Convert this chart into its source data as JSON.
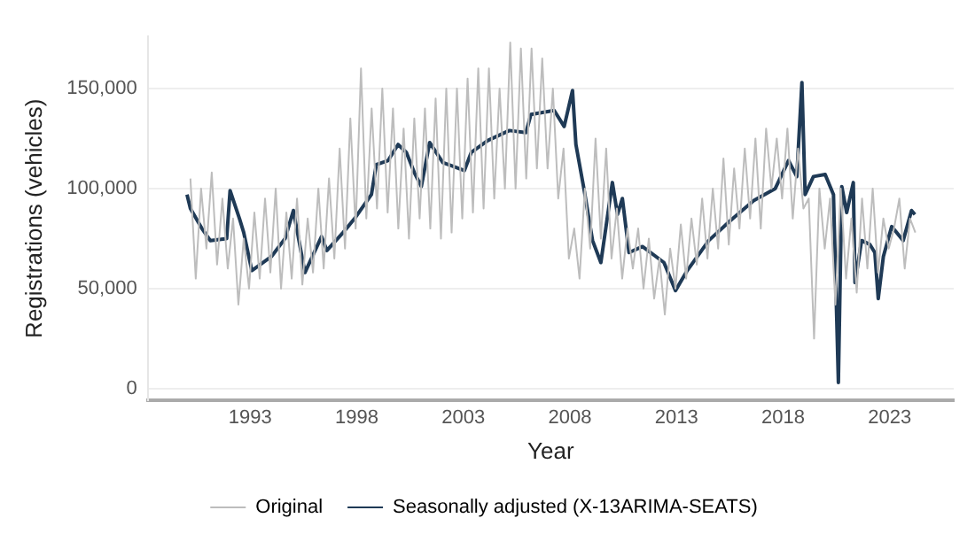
{
  "chart_data": {
    "type": "line",
    "xlabel": "Year",
    "ylabel": "Registrations (vehicles)",
    "xlim": [
      1988.2,
      2026
    ],
    "xticks": [
      1993,
      1998,
      2003,
      2008,
      2013,
      2018,
      2023
    ],
    "ylim": [
      -6000,
      176000
    ],
    "yticks": [
      0,
      {
        "value": 50000,
        "label": "50,000"
      },
      {
        "value": 100000,
        "label": "100,000"
      },
      {
        "value": 150000,
        "label": "150,000"
      }
    ],
    "grid": "y",
    "legend": "bottom",
    "marker": "none",
    "line_style": "solid",
    "series": [
      {
        "name": "Original",
        "color": "#bdbdbd",
        "x": [
          1990.2,
          1990.45,
          1990.7,
          1990.95,
          1991.2,
          1991.45,
          1991.7,
          1991.95,
          1992.2,
          1992.45,
          1992.7,
          1992.95,
          1993.2,
          1993.45,
          1993.7,
          1993.95,
          1994.2,
          1994.45,
          1994.7,
          1994.95,
          1995.2,
          1995.45,
          1995.7,
          1995.95,
          1996.2,
          1996.45,
          1996.7,
          1996.95,
          1997.2,
          1997.45,
          1997.7,
          1997.95,
          1998.2,
          1998.45,
          1998.7,
          1998.95,
          1999.2,
          1999.45,
          1999.7,
          1999.95,
          2000.2,
          2000.45,
          2000.7,
          2000.95,
          2001.2,
          2001.45,
          2001.7,
          2001.95,
          2002.2,
          2002.45,
          2002.7,
          2002.95,
          2003.2,
          2003.45,
          2003.7,
          2003.95,
          2004.2,
          2004.45,
          2004.7,
          2004.95,
          2005.2,
          2005.45,
          2005.7,
          2005.95,
          2006.2,
          2006.45,
          2006.7,
          2006.95,
          2007.2,
          2007.45,
          2007.7,
          2007.95,
          2008.2,
          2008.45,
          2008.7,
          2008.95,
          2009.2,
          2009.45,
          2009.7,
          2009.95,
          2010.2,
          2010.45,
          2010.7,
          2010.95,
          2011.2,
          2011.45,
          2011.7,
          2011.95,
          2012.2,
          2012.45,
          2012.7,
          2012.95,
          2013.2,
          2013.45,
          2013.7,
          2013.95,
          2014.2,
          2014.45,
          2014.7,
          2014.95,
          2015.2,
          2015.45,
          2015.7,
          2015.95,
          2016.2,
          2016.45,
          2016.7,
          2016.95,
          2017.2,
          2017.45,
          2017.7,
          2017.95,
          2018.2,
          2018.45,
          2018.7,
          2018.95,
          2019.2,
          2019.45,
          2019.7,
          2019.95,
          2020.2,
          2020.45,
          2020.7,
          2020.95,
          2021.2,
          2021.45,
          2021.7,
          2021.95,
          2022.2,
          2022.45,
          2022.7,
          2022.95,
          2023.2,
          2023.45,
          2023.7,
          2023.95,
          2024.2
        ],
        "values": [
          105000,
          55000,
          100000,
          70000,
          108000,
          62000,
          95000,
          60000,
          85000,
          42000,
          75000,
          50000,
          88000,
          55000,
          95000,
          58000,
          100000,
          50000,
          88000,
          55000,
          95000,
          52000,
          85000,
          58000,
          100000,
          60000,
          105000,
          65000,
          120000,
          70000,
          135000,
          80000,
          160000,
          85000,
          140000,
          90000,
          150000,
          88000,
          140000,
          80000,
          130000,
          75000,
          135000,
          85000,
          140000,
          80000,
          145000,
          75000,
          150000,
          78000,
          150000,
          85000,
          155000,
          88000,
          160000,
          90000,
          160000,
          95000,
          150000,
          100000,
          173000,
          100000,
          170000,
          105000,
          170000,
          110000,
          165000,
          110000,
          150000,
          95000,
          120000,
          65000,
          80000,
          55000,
          100000,
          70000,
          125000,
          75000,
          120000,
          65000,
          90000,
          55000,
          80000,
          60000,
          80000,
          50000,
          75000,
          45000,
          65000,
          37000,
          70000,
          50000,
          82000,
          55000,
          85000,
          62000,
          95000,
          65000,
          100000,
          70000,
          115000,
          72000,
          110000,
          80000,
          120000,
          85000,
          125000,
          80000,
          130000,
          100000,
          125000,
          95000,
          130000,
          85000,
          120000,
          90000,
          95000,
          25000,
          100000,
          70000,
          95000,
          42000,
          100000,
          55000,
          85000,
          48000,
          95000,
          60000,
          100000,
          58000,
          85000,
          70000,
          80000,
          95000,
          60000,
          85000,
          78000
        ]
      },
      {
        "name": "Seasonally adjusted (X-13ARIMA-SEATS)",
        "color": "#1f3a56",
        "x": [
          1990.04,
          1990.2,
          1990.74,
          1991.13,
          1991.9,
          1992.06,
          1992.5,
          1992.7,
          1993.08,
          1994.0,
          1994.64,
          1995.03,
          1995.57,
          1996.35,
          1996.6,
          1997.36,
          1997.9,
          1998.69,
          1998.92,
          1999.47,
          1999.94,
          2000.33,
          2000.7,
          2001.03,
          2001.42,
          2002.04,
          2003.05,
          2003.37,
          2004.15,
          2005.16,
          2005.94,
          2006.17,
          2007.26,
          2007.73,
          2008.12,
          2008.28,
          2008.67,
          2009.06,
          2009.45,
          2009.99,
          2010.23,
          2010.46,
          2010.77,
          2011.4,
          2012.41,
          2012.95,
          2013.5,
          2014.51,
          2015.53,
          2016.62,
          2017.63,
          2018.25,
          2018.64,
          2018.88,
          2019.03,
          2019.42,
          2019.97,
          2020.36,
          2020.59,
          2020.75,
          2020.98,
          2021.29,
          2021.37,
          2021.68,
          2022.07,
          2022.3,
          2022.46,
          2022.7,
          2023.09,
          2023.63,
          2024.02,
          2024.18
        ],
        "values": [
          97000,
          90000,
          80000,
          74000,
          75000,
          99000,
          85000,
          78000,
          59000,
          66000,
          75000,
          89000,
          58000,
          76000,
          69000,
          78000,
          85000,
          97000,
          112000,
          114000,
          122000,
          118000,
          108000,
          101000,
          123000,
          113000,
          109000,
          118000,
          124000,
          129000,
          128000,
          137000,
          139000,
          131000,
          149000,
          122000,
          99000,
          74000,
          63000,
          103000,
          87000,
          95000,
          68000,
          71000,
          63000,
          49000,
          59000,
          74000,
          84000,
          94000,
          100000,
          114000,
          106000,
          153000,
          97000,
          106000,
          107000,
          97000,
          3000,
          101000,
          88000,
          103000,
          53000,
          74000,
          72000,
          68000,
          45000,
          66000,
          81000,
          74000,
          89000,
          87000
        ]
      }
    ]
  }
}
